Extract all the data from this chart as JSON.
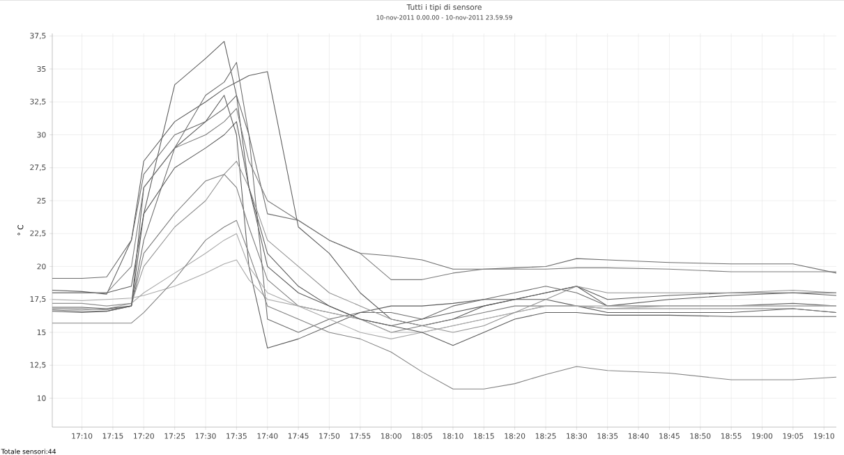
{
  "chart_data": {
    "type": "line",
    "title": "Tutti i tipi di sensore",
    "subtitle": "10-nov-2011 0.00.00 - 10-nov-2011 23.59.59",
    "ylabel": "° C",
    "annotations": [
      "Totale sensori:44"
    ],
    "grid": true,
    "x": [
      17.0867,
      17.1667,
      17.2333,
      17.3,
      17.3333,
      17.4167,
      17.5,
      17.55,
      17.5833,
      17.6167,
      17.6667,
      17.75,
      17.8333,
      17.9167,
      18.0,
      18.0833,
      18.1667,
      18.25,
      18.3333,
      18.4167,
      18.5,
      18.5833,
      18.75,
      18.9167,
      19.0833,
      19.2
    ],
    "xlim": [
      17.0867,
      19.2
    ],
    "ylim": [
      7.8,
      37.7
    ],
    "xticks": [
      {
        "value": 17.1667,
        "label": "17:10"
      },
      {
        "value": 17.25,
        "label": "17:15"
      },
      {
        "value": 17.3333,
        "label": "17:20"
      },
      {
        "value": 17.4167,
        "label": "17:25"
      },
      {
        "value": 17.5,
        "label": "17:30"
      },
      {
        "value": 17.5833,
        "label": "17:35"
      },
      {
        "value": 17.6667,
        "label": "17:40"
      },
      {
        "value": 17.75,
        "label": "17:45"
      },
      {
        "value": 17.8333,
        "label": "17:50"
      },
      {
        "value": 17.9167,
        "label": "17:55"
      },
      {
        "value": 18.0,
        "label": "18:00"
      },
      {
        "value": 18.0833,
        "label": "18:05"
      },
      {
        "value": 18.1667,
        "label": "18:10"
      },
      {
        "value": 18.25,
        "label": "18:15"
      },
      {
        "value": 18.3333,
        "label": "18:20"
      },
      {
        "value": 18.4167,
        "label": "18:25"
      },
      {
        "value": 18.5,
        "label": "18:30"
      },
      {
        "value": 18.5833,
        "label": "18:35"
      },
      {
        "value": 18.6667,
        "label": "18:40"
      },
      {
        "value": 18.75,
        "label": "18:45"
      },
      {
        "value": 18.8333,
        "label": "18:50"
      },
      {
        "value": 18.9167,
        "label": "18:55"
      },
      {
        "value": 19.0,
        "label": "19:00"
      },
      {
        "value": 19.0833,
        "label": "19:05"
      },
      {
        "value": 19.1667,
        "label": "19:10"
      }
    ],
    "yticks": [
      10,
      {
        "value": 12.5,
        "label": "12,5"
      },
      15,
      {
        "value": 17.5,
        "label": "17,5"
      },
      20,
      {
        "value": 22.5,
        "label": "22,5"
      },
      25,
      {
        "value": 27.5,
        "label": "27,5"
      },
      30,
      {
        "value": 32.5,
        "label": "32,5"
      },
      35,
      {
        "value": 37.5,
        "label": "37,5"
      }
    ],
    "series": [
      {
        "color": "#5a5a5a",
        "values": [
          18,
          18,
          18,
          18.5,
          24,
          33.8,
          35.8,
          37.1,
          33,
          26,
          20,
          18,
          17,
          16,
          15.5,
          16,
          16.5,
          17,
          17.5,
          18,
          18.5,
          17,
          17.5,
          17.8,
          18,
          18
        ]
      },
      {
        "color": "#5a5a5a",
        "values": [
          18.2,
          18.1,
          17.9,
          22,
          28,
          31,
          32.5,
          33.5,
          34,
          34.5,
          34.8,
          23,
          21,
          18,
          16,
          15.5,
          16,
          17,
          17.5,
          18,
          18.5,
          17.5,
          17.8,
          18,
          18,
          17.8
        ]
      },
      {
        "color": "#6a6a6a",
        "values": [
          16.7,
          16.6,
          16.6,
          17,
          22,
          29,
          33,
          34,
          35.5,
          30,
          16,
          15,
          16,
          16.5,
          16.5,
          16,
          17,
          17.5,
          18,
          18.5,
          18,
          17,
          17,
          17,
          17.2,
          17
        ]
      },
      {
        "color": "#5a5a5a",
        "values": [
          16.6,
          16.5,
          16.6,
          17,
          26,
          29,
          31,
          33,
          30,
          20,
          13.8,
          14.5,
          15.5,
          16.5,
          17,
          17,
          17.2,
          17.5,
          17.5,
          17.5,
          17,
          16.5,
          16.5,
          16.5,
          16.8,
          16.5
        ]
      },
      {
        "color": "#7a7a7a",
        "values": [
          16.8,
          16.8,
          16.7,
          17,
          21,
          24,
          26.5,
          27,
          26,
          23,
          19,
          17,
          16.5,
          16,
          15,
          15.5,
          16,
          16.5,
          17,
          17,
          17,
          16.8,
          16.8,
          16.8,
          16.8,
          16.5
        ]
      },
      {
        "color": "#a8a8a8",
        "values": [
          16.8,
          16.7,
          16.8,
          17.2,
          18,
          19.5,
          21,
          22,
          22.5,
          20,
          18,
          17,
          16.5,
          16,
          15,
          15,
          15.5,
          16,
          16.5,
          17,
          17,
          16.8,
          17,
          17,
          17,
          17
        ]
      },
      {
        "color": "#a8a8a8",
        "values": [
          17.5,
          17.4,
          17.5,
          17.6,
          17.8,
          18.5,
          19.5,
          20.2,
          20.5,
          19,
          17.5,
          17,
          16,
          15,
          14.5,
          15,
          15.5,
          16,
          16.5,
          17,
          17,
          17,
          17,
          17,
          17,
          17
        ]
      },
      {
        "color": "#808080",
        "values": [
          15.7,
          15.7,
          15.7,
          15.7,
          16.5,
          19,
          22,
          23,
          23.5,
          21,
          17,
          16,
          15,
          14.5,
          13.5,
          12,
          10.7,
          10.7,
          11.1,
          11.8,
          12.4,
          12.1,
          11.9,
          11.4,
          11.4,
          11.6
        ]
      },
      {
        "color": "#6a6a6a",
        "values": [
          19.1,
          19.1,
          19.2,
          22,
          27,
          30,
          31,
          32,
          33,
          30,
          24,
          23.5,
          22,
          21,
          20.8,
          20.5,
          19.8,
          19.8,
          19.9,
          20,
          20.6,
          20.5,
          20.3,
          20.2,
          20.2,
          19.5
        ]
      },
      {
        "color": "#7a7a7a",
        "values": [
          18.0,
          18.0,
          18.0,
          20,
          26,
          29,
          30,
          31,
          32,
          28,
          25,
          23.5,
          22,
          21,
          19,
          19,
          19.5,
          19.8,
          19.8,
          19.8,
          19.9,
          19.9,
          19.8,
          19.6,
          19.6,
          19.6
        ]
      },
      {
        "color": "#909090",
        "values": [
          17.2,
          17.2,
          17.0,
          17.2,
          20,
          23,
          25,
          27,
          28,
          26,
          22,
          20,
          18,
          17,
          16,
          15.5,
          15,
          15.5,
          16.5,
          17.5,
          18.5,
          18,
          18,
          18,
          18.2,
          18
        ]
      },
      {
        "color": "#5a5a5a",
        "values": [
          16.9,
          16.9,
          16.8,
          17,
          24,
          27.5,
          29,
          30,
          31,
          26,
          21,
          18.5,
          17,
          16,
          15.5,
          15,
          14,
          15,
          16,
          16.5,
          16.5,
          16.3,
          16.3,
          16.2,
          16.2,
          16.2
        ]
      }
    ]
  }
}
